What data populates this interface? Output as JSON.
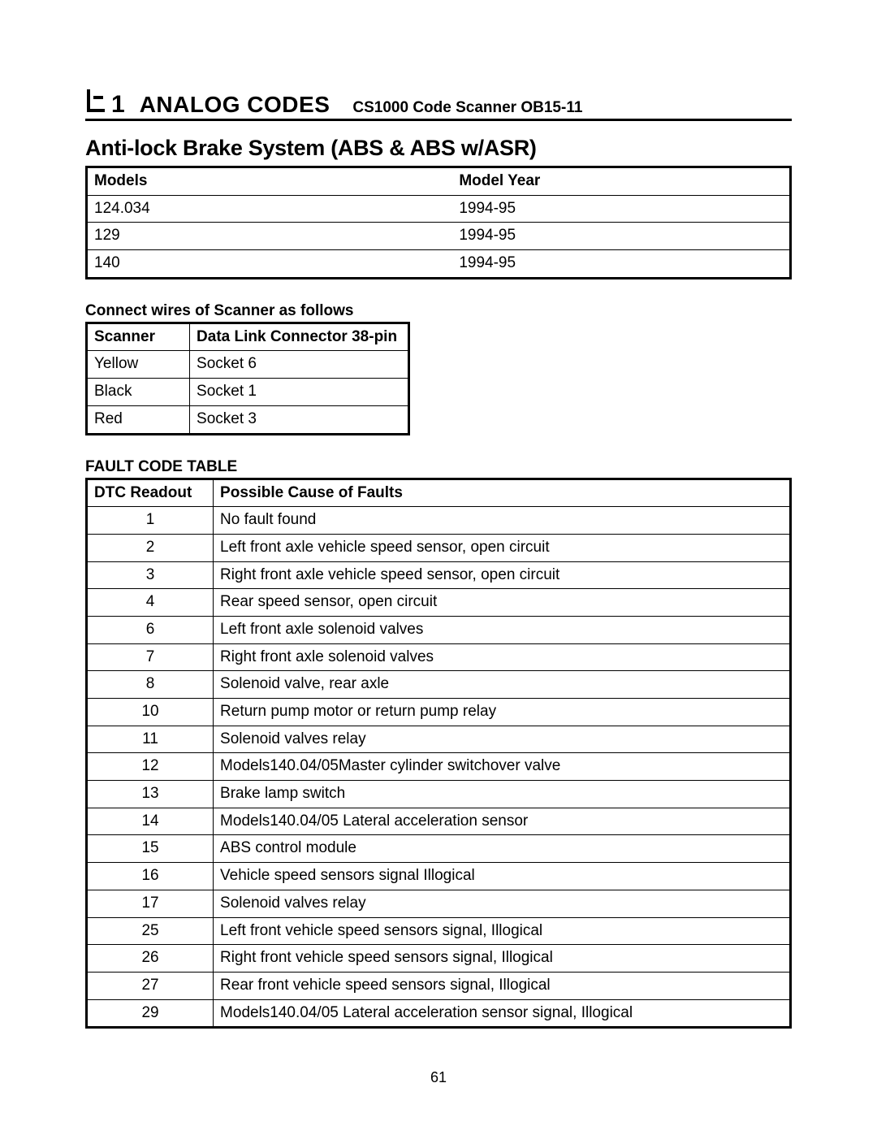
{
  "header": {
    "section_number": "1",
    "section_title": "ANALOG CODES",
    "scanner_label": "CS1000 Code Scanner  OB15-11"
  },
  "subsystem_title": "Anti-lock Brake System (ABS & ABS w/ASR)",
  "models_table": {
    "columns": [
      "Models",
      "Model Year"
    ],
    "rows": [
      [
        "124.034",
        "1994-95"
      ],
      [
        "129",
        "1994-95"
      ],
      [
        "140",
        "1994-95"
      ]
    ]
  },
  "wires_section": {
    "caption": "Connect wires of Scanner as follows",
    "columns": [
      "Scanner",
      "Data Link Connector 38-pin"
    ],
    "rows": [
      [
        "Yellow",
        "Socket  6"
      ],
      [
        "Black",
        "Socket  1"
      ],
      [
        "Red",
        "Socket  3"
      ]
    ]
  },
  "fault_section": {
    "caption": "FAULT CODE TABLE",
    "columns": [
      "DTC Readout",
      "Possible Cause of Faults"
    ],
    "rows": [
      [
        "1",
        "No fault found"
      ],
      [
        "2",
        "Left front axle vehicle speed sensor, open circuit"
      ],
      [
        "3",
        "Right front axle vehicle speed sensor, open circuit"
      ],
      [
        "4",
        "Rear speed sensor, open circuit"
      ],
      [
        "6",
        "Left front axle solenoid valves"
      ],
      [
        "7",
        "Right front axle solenoid valves"
      ],
      [
        "8",
        "Solenoid valve, rear axle"
      ],
      [
        "10",
        "Return pump motor or return pump relay"
      ],
      [
        "11",
        "Solenoid valves relay"
      ],
      [
        "12",
        "Models140.04/05Master cylinder switchover valve"
      ],
      [
        "13",
        "Brake lamp switch"
      ],
      [
        "14",
        "Models140.04/05 Lateral acceleration sensor"
      ],
      [
        "15",
        "ABS control module"
      ],
      [
        "16",
        "Vehicle speed sensors signal Illogical"
      ],
      [
        "17",
        "Solenoid valves relay"
      ],
      [
        "25",
        "Left front vehicle speed sensors signal, Illogical"
      ],
      [
        "26",
        "Right front vehicle speed sensors signal, Illogical"
      ],
      [
        "27",
        "Rear front vehicle speed sensors signal, Illogical"
      ],
      [
        "29",
        "Models140.04/05 Lateral acceleration sensor signal, Illogical"
      ]
    ]
  },
  "page_number": "61"
}
